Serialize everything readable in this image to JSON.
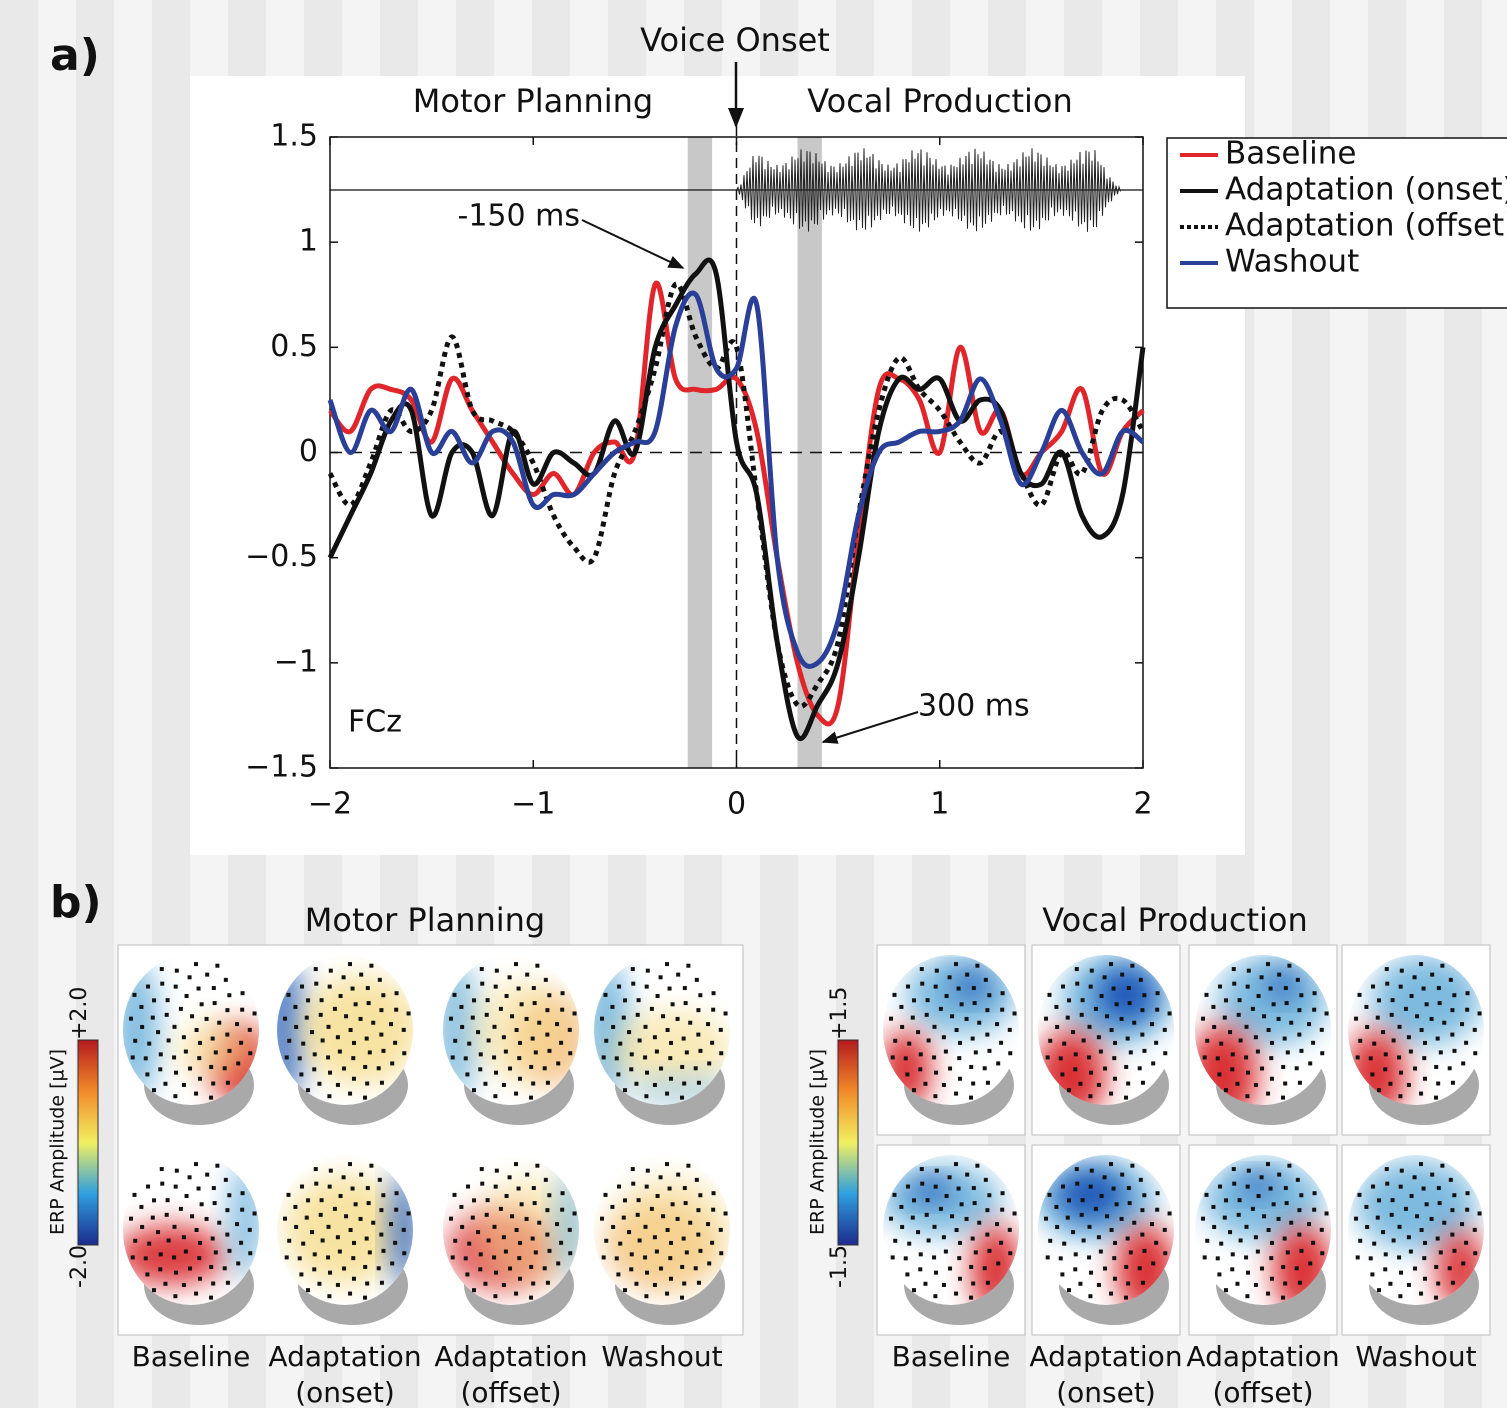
{
  "chart_data": {
    "type": "line",
    "panel_label": "a)",
    "channel_label": "FCz",
    "top_labels": {
      "onset": "Voice Onset",
      "left": "Motor Planning",
      "right": "Vocal Production"
    },
    "annotations": [
      {
        "text": "-150 ms"
      },
      {
        "text": "300 ms"
      }
    ],
    "x": [
      -2,
      -1.9,
      -1.8,
      -1.7,
      -1.6,
      -1.5,
      -1.4,
      -1.3,
      -1.2,
      -1.1,
      -1,
      -0.9,
      -0.8,
      -0.7,
      -0.6,
      -0.5,
      -0.4,
      -0.3,
      -0.2,
      -0.1,
      0,
      0.1,
      0.2,
      0.3,
      0.4,
      0.5,
      0.6,
      0.7,
      0.8,
      0.9,
      1,
      1.1,
      1.2,
      1.3,
      1.4,
      1.5,
      1.6,
      1.7,
      1.8,
      1.9,
      2
    ],
    "series": [
      {
        "name": "Baseline",
        "color": "#e0262a",
        "dash": false,
        "values": [
          0.2,
          0.1,
          0.3,
          0.3,
          0.25,
          0.05,
          0.35,
          0.2,
          0.05,
          -0.1,
          -0.2,
          -0.1,
          -0.2,
          0,
          0.05,
          0,
          0.8,
          0.35,
          0.3,
          0.3,
          0.35,
          0.1,
          -0.5,
          -1,
          -1.25,
          -1.2,
          -0.4,
          0.3,
          0.35,
          0.25,
          0,
          0.5,
          0.1,
          0.2,
          -0.1,
          0,
          0.1,
          0.3,
          -0.1,
          0.1,
          0.2
        ]
      },
      {
        "name": "Adaptation (onset)",
        "color": "#111111",
        "dash": false,
        "values": [
          -0.5,
          -0.3,
          -0.1,
          0.15,
          0.2,
          -0.3,
          0,
          0,
          -0.3,
          0.1,
          -0.15,
          0,
          -0.05,
          -0.1,
          0.15,
          0,
          0.5,
          0.7,
          0.85,
          0.85,
          0.05,
          -0.2,
          -0.9,
          -1.35,
          -1.2,
          -1,
          -0.5,
          0.1,
          0.35,
          0.3,
          0.35,
          0.15,
          0.25,
          0.2,
          -0.1,
          -0.15,
          0,
          -0.3,
          -0.4,
          -0.2,
          0.5
        ]
      },
      {
        "name": "Adaptation (offset)",
        "color": "#111111",
        "dash": true,
        "values": [
          -0.1,
          -0.25,
          -0.05,
          0.2,
          0.1,
          0.2,
          0.55,
          0.2,
          0.15,
          0.1,
          -0.05,
          -0.3,
          -0.45,
          -0.5,
          -0.1,
          0.1,
          0.4,
          0.8,
          0.55,
          0.4,
          0.5,
          -0.2,
          -0.9,
          -1.2,
          -1.1,
          -0.9,
          -0.3,
          0.2,
          0.45,
          0.3,
          0.2,
          0.05,
          -0.05,
          0.1,
          -0.1,
          -0.25,
          0,
          -0.1,
          0.2,
          0.25,
          0.1
        ]
      },
      {
        "name": "Washout",
        "color": "#2a3f98",
        "dash": false,
        "values": [
          0.25,
          0,
          0.2,
          0.1,
          0.3,
          0,
          0.1,
          -0.05,
          0.1,
          0.05,
          -0.25,
          -0.2,
          -0.2,
          -0.1,
          0,
          0.05,
          0.1,
          0.6,
          0.75,
          0.4,
          0.4,
          0.7,
          -0.5,
          -0.95,
          -1,
          -0.8,
          -0.3,
          0,
          0.05,
          0.1,
          0.1,
          0.15,
          0.35,
          0.15,
          -0.15,
          0,
          0.2,
          0,
          -0.1,
          0.1,
          0.05
        ]
      }
    ],
    "highlight_bands": [
      [
        -0.24,
        -0.12
      ],
      [
        0.3,
        0.42
      ]
    ],
    "xlim": [
      -2,
      2
    ],
    "ylim": [
      -1.5,
      1.5
    ],
    "xticks": [
      {
        "value": -2,
        "label": "−2"
      },
      {
        "value": -1,
        "label": "−1"
      },
      0,
      1,
      2
    ],
    "yticks": [
      {
        "value": -1.5,
        "label": "−1.5"
      },
      {
        "value": -1,
        "label": "−1"
      },
      {
        "value": -0.5,
        "label": "−0.5"
      },
      0,
      0.5,
      1,
      1.5
    ],
    "legend": "outside-right"
  },
  "panel_b": {
    "label": "b)",
    "motor_planning": {
      "title": "Motor Planning",
      "colorbar_title": "ERP Amplitude [µV]",
      "colorbar_max": "+2.0",
      "colorbar_min": "-2.0",
      "columns": [
        [
          "Baseline"
        ],
        [
          "Adaptation",
          "(onset)"
        ],
        [
          "Adaptation",
          "(offset)"
        ],
        [
          "Washout"
        ]
      ]
    },
    "vocal_production": {
      "title": "Vocal Production",
      "colorbar_title": "ERP Amplitude [µV]",
      "colorbar_max": "+1.5",
      "colorbar_min": "-1.5",
      "columns": [
        [
          "Baseline"
        ],
        [
          "Adaptation",
          "(onset)"
        ],
        [
          "Adaptation",
          "(offset)"
        ],
        [
          "Washout"
        ]
      ]
    }
  }
}
